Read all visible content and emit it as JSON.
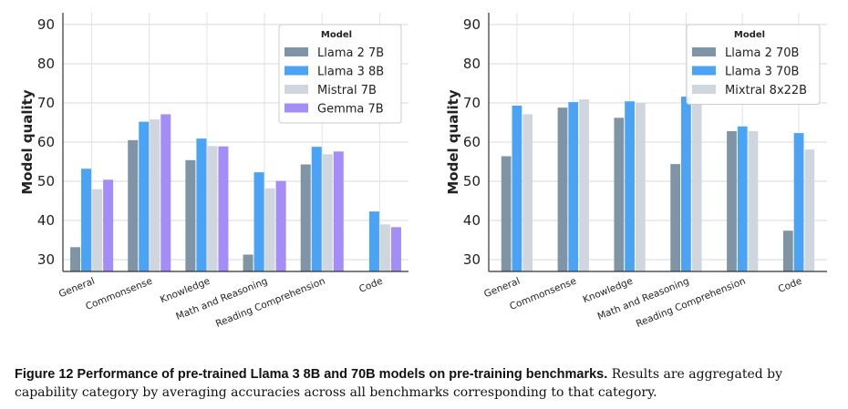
{
  "chart_data": [
    {
      "type": "bar",
      "title": "",
      "xlabel": "",
      "ylabel": "Model quality",
      "ylim": [
        27,
        93
      ],
      "yticks": [
        30,
        40,
        50,
        60,
        70,
        80,
        90
      ],
      "grid": true,
      "legend_title": "Model",
      "legend_position": "top-right",
      "categories": [
        "General",
        "Commonsense",
        "Knowledge",
        "Math and Reasoning",
        "Reading Comprehension",
        "Code"
      ],
      "series": [
        {
          "name": "Llama 2 7B",
          "color": "#7f95a6",
          "values": [
            33.2,
            60.5,
            55.4,
            31.3,
            54.3,
            null
          ]
        },
        {
          "name": "Llama 3 8B",
          "color": "#4aa3f4",
          "values": [
            53.2,
            65.2,
            60.9,
            52.3,
            58.8,
            42.3
          ]
        },
        {
          "name": "Mistral 7B",
          "color": "#d0d6dd",
          "values": [
            48.0,
            65.8,
            59.0,
            48.2,
            56.9,
            39.0
          ]
        },
        {
          "name": "Gemma 7B",
          "color": "#a58df7",
          "values": [
            50.4,
            67.1,
            58.9,
            50.1,
            57.6,
            38.3
          ]
        }
      ]
    },
    {
      "type": "bar",
      "title": "",
      "xlabel": "",
      "ylabel": "Model quality",
      "ylim": [
        27,
        93
      ],
      "yticks": [
        30,
        40,
        50,
        60,
        70,
        80,
        90
      ],
      "grid": true,
      "legend_title": "Model",
      "legend_position": "top-right",
      "categories": [
        "General",
        "Commonsense",
        "Knowledge",
        "Math and Reasoning",
        "Reading Comprehension",
        "Code"
      ],
      "series": [
        {
          "name": "Llama 2 70B",
          "color": "#7f95a6",
          "values": [
            56.4,
            68.8,
            66.2,
            54.4,
            62.8,
            37.4
          ]
        },
        {
          "name": "Llama 3 70B",
          "color": "#4aa3f4",
          "values": [
            69.3,
            70.2,
            70.4,
            71.6,
            64.0,
            62.3
          ]
        },
        {
          "name": "Mixtral 8x22B",
          "color": "#d0d6dd",
          "values": [
            67.1,
            70.9,
            70.0,
            70.1,
            62.8,
            58.1
          ]
        }
      ]
    }
  ],
  "caption": {
    "label": "Figure 12  Performance of pre-trained Llama 3 8B and 70B models on pre-training benchmarks.",
    "text": " Results are aggregated by capability category by averaging accuracies across all benchmarks corresponding to that category."
  }
}
